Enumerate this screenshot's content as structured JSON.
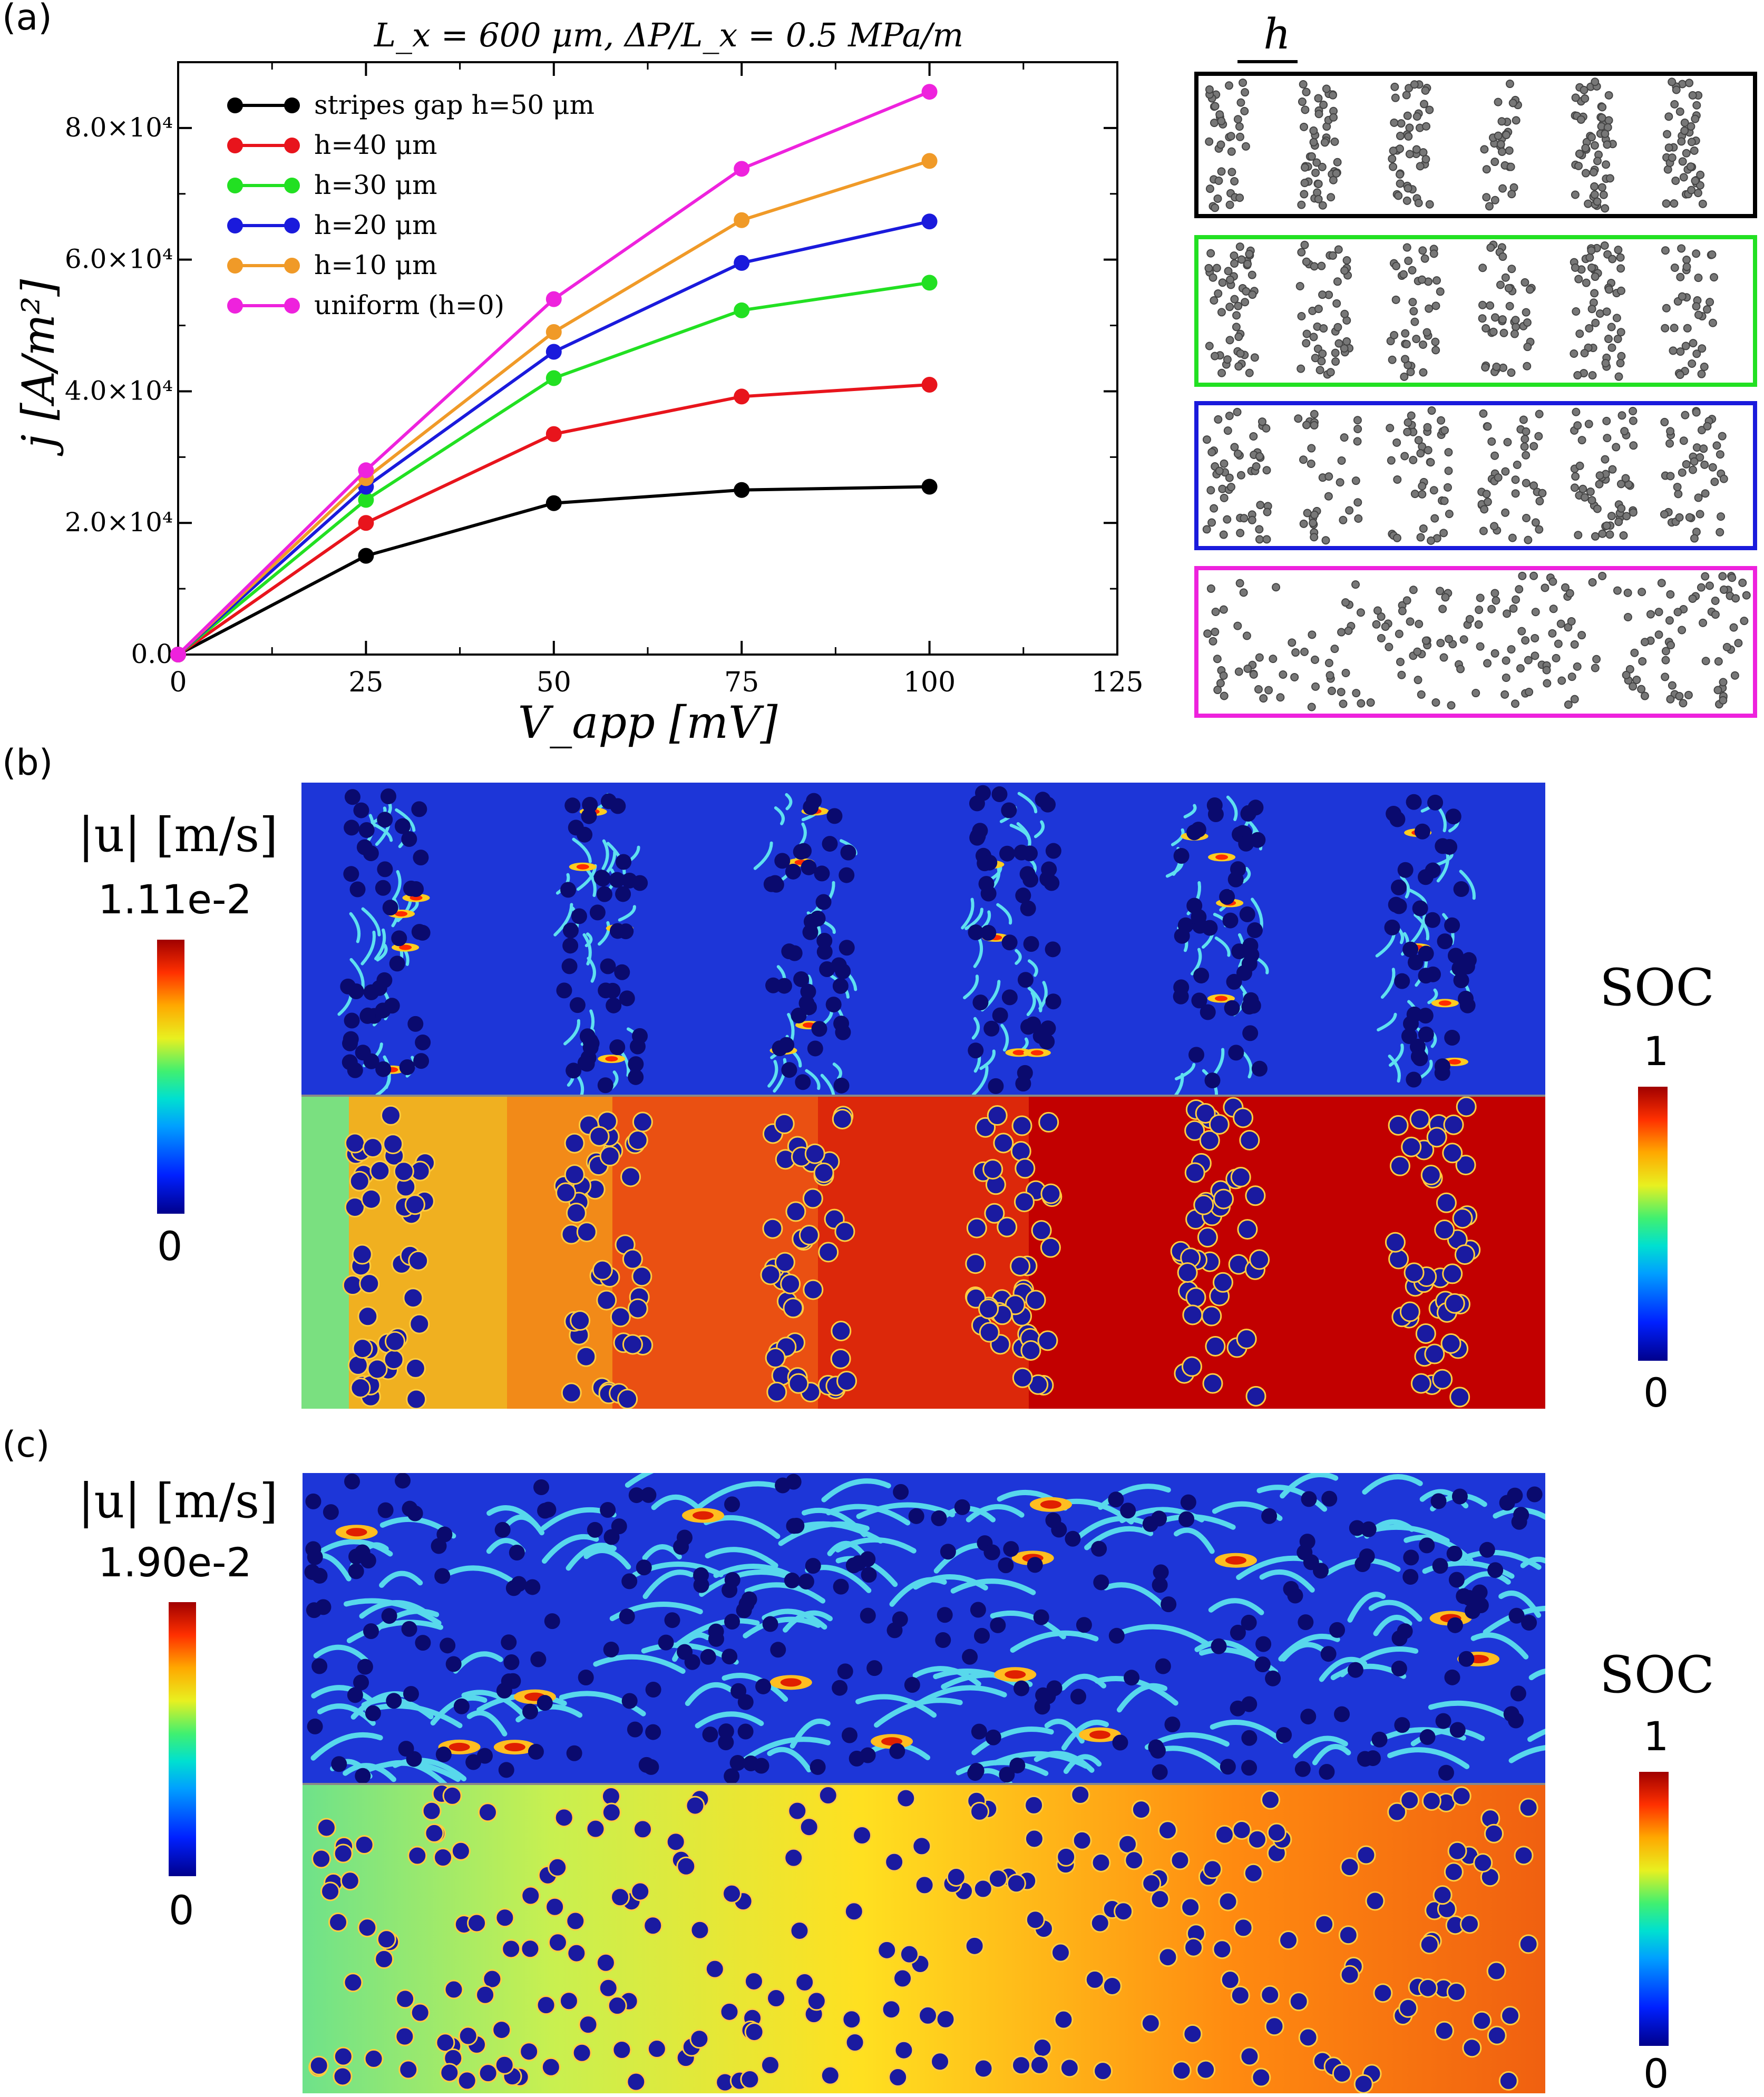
{
  "panels": {
    "a_label": "(a)",
    "b_label": "(b)",
    "c_label": "(c)"
  },
  "chart_data": {
    "type": "line",
    "title": "L_x = 600 μm, ΔP/L_x = 0.5 MPa/m",
    "xlabel": "V_app [mV]",
    "ylabel": "j [A/m²]",
    "x": [
      0,
      25,
      50,
      75,
      100
    ],
    "xlim": [
      0,
      125
    ],
    "ylim": [
      0,
      90000
    ],
    "xticks": [
      "0",
      "25",
      "50",
      "75",
      "100",
      "125"
    ],
    "yticks": [
      "0.0",
      "2.0×10⁴",
      "4.0×10⁴",
      "6.0×10⁴",
      "8.0×10⁴"
    ],
    "legend_position": "top-left",
    "series": [
      {
        "name": "stripes gap h=50 μm",
        "color": "#000000",
        "values": [
          0,
          15000,
          23000,
          25000,
          25500
        ]
      },
      {
        "name": "h=40 μm",
        "color": "#e8141c",
        "values": [
          0,
          20000,
          33500,
          39200,
          41000
        ]
      },
      {
        "name": "h=30 μm",
        "color": "#22e022",
        "values": [
          0,
          23500,
          42000,
          52300,
          56500
        ]
      },
      {
        "name": "h=20 μm",
        "color": "#1a1adc",
        "values": [
          0,
          25500,
          46000,
          59500,
          65800
        ]
      },
      {
        "name": "h=10 μm",
        "color": "#f09a28",
        "values": [
          0,
          26800,
          49000,
          66000,
          75000
        ]
      },
      {
        "name": "uniform (h=0)",
        "color": "#ee22dd",
        "values": [
          0,
          28000,
          54000,
          73800,
          85500
        ]
      }
    ]
  },
  "schematic": {
    "h_label": "h",
    "frame_colors": [
      "#000000",
      "#22e022",
      "#1a1adc",
      "#ee22dd"
    ]
  },
  "panel_b": {
    "colorbar_title": "|u| [m/s]",
    "colorbar_max": "1.11e-2",
    "colorbar_min": "0",
    "soc_title": "SOC",
    "soc_max": "1",
    "soc_min": "0"
  },
  "panel_c": {
    "colorbar_title": "|u| [m/s]",
    "colorbar_max": "1.90e-2",
    "colorbar_min": "0",
    "soc_title": "SOC",
    "soc_max": "1",
    "soc_min": "0"
  }
}
